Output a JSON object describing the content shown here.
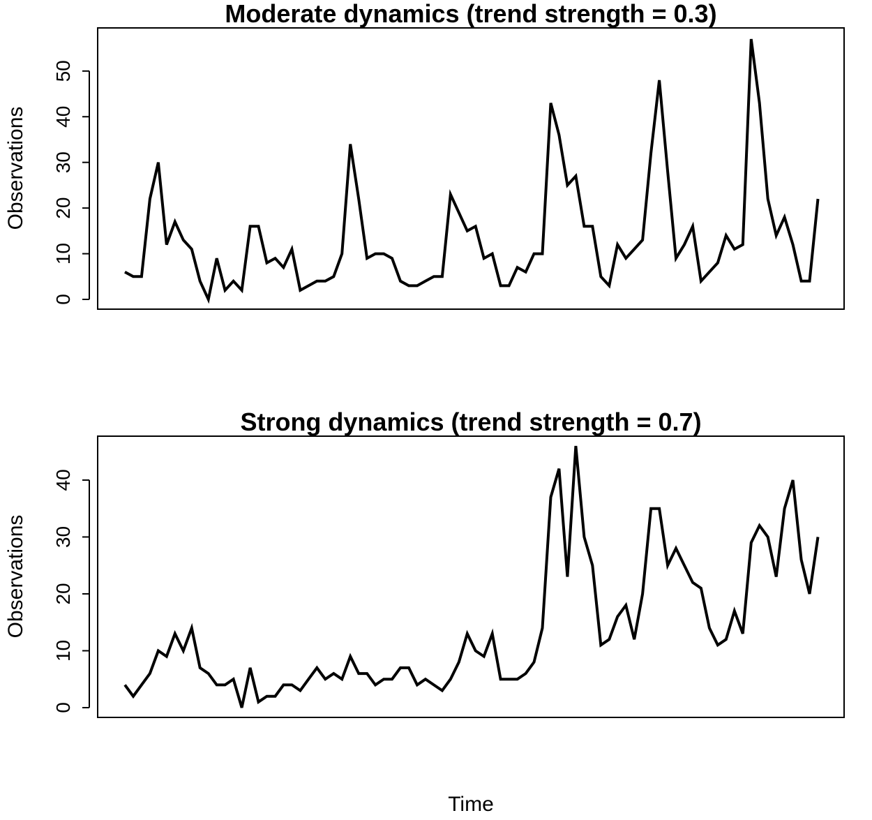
{
  "figure": {
    "xlabel": "Time"
  },
  "chart_data": [
    {
      "type": "line",
      "title": "Moderate dynamics (trend strength = 0.3)",
      "ylabel": "Observations",
      "xlabel": "",
      "ylim": [
        0,
        57
      ],
      "yticks": [
        "0",
        "10",
        "20",
        "30",
        "40",
        "50"
      ],
      "grid": false,
      "line_color": "#000000",
      "x": [
        1,
        2,
        3,
        4,
        5,
        6,
        7,
        8,
        9,
        10,
        11,
        12,
        13,
        14,
        15,
        16,
        17,
        18,
        19,
        20,
        21,
        22,
        23,
        24,
        25,
        26,
        27,
        28,
        29,
        30,
        31,
        32,
        33,
        34,
        35,
        36,
        37,
        38,
        39,
        40,
        41,
        42,
        43,
        44,
        45,
        46,
        47,
        48,
        49,
        50,
        51,
        52,
        53,
        54,
        55,
        56,
        57,
        58,
        59,
        60,
        61,
        62,
        63,
        64,
        65,
        66,
        67,
        68,
        69,
        70,
        71,
        72,
        73,
        74,
        75,
        76,
        77,
        78,
        79,
        80,
        81,
        82,
        83,
        84,
        85,
        86,
        87,
        88,
        89,
        90
      ],
      "values": [
        6,
        5,
        5,
        22,
        30,
        12,
        17,
        13,
        11,
        4,
        0,
        9,
        2,
        4,
        2,
        16,
        16,
        8,
        9,
        7,
        11,
        2,
        3,
        4,
        4,
        5,
        10,
        34,
        22,
        9,
        10,
        10,
        9,
        4,
        3,
        3,
        4,
        5,
        5,
        23,
        19,
        15,
        16,
        9,
        10,
        3,
        3,
        7,
        6,
        10,
        10,
        43,
        36,
        25,
        27,
        16,
        16,
        5,
        3,
        12,
        9,
        11,
        13,
        32,
        48,
        28,
        9,
        12,
        16,
        4,
        6,
        8,
        14,
        11,
        12,
        57,
        43,
        22,
        14,
        18,
        12,
        4,
        4,
        22,
        null,
        null,
        null,
        null,
        null,
        null
      ]
    },
    {
      "type": "line",
      "title": "Strong dynamics (trend strength = 0.7)",
      "ylabel": "Observations",
      "xlabel": "",
      "ylim": [
        0,
        46
      ],
      "yticks": [
        "0",
        "10",
        "20",
        "30",
        "40"
      ],
      "grid": false,
      "line_color": "#000000",
      "x": [
        1,
        2,
        3,
        4,
        5,
        6,
        7,
        8,
        9,
        10,
        11,
        12,
        13,
        14,
        15,
        16,
        17,
        18,
        19,
        20,
        21,
        22,
        23,
        24,
        25,
        26,
        27,
        28,
        29,
        30,
        31,
        32,
        33,
        34,
        35,
        36,
        37,
        38,
        39,
        40,
        41,
        42,
        43,
        44,
        45,
        46,
        47,
        48,
        49,
        50,
        51,
        52,
        53,
        54,
        55,
        56,
        57,
        58,
        59,
        60,
        61,
        62,
        63,
        64,
        65,
        66,
        67,
        68,
        69,
        70,
        71,
        72,
        73,
        74,
        75,
        76,
        77,
        78,
        79,
        80,
        81,
        82,
        83,
        84,
        85,
        86,
        87,
        88,
        89,
        90
      ],
      "values": [
        4,
        2,
        4,
        6,
        10,
        9,
        13,
        10,
        14,
        7,
        6,
        4,
        4,
        5,
        0,
        7,
        1,
        2,
        2,
        4,
        4,
        3,
        5,
        7,
        5,
        6,
        5,
        9,
        6,
        6,
        4,
        5,
        5,
        7,
        7,
        4,
        5,
        4,
        3,
        5,
        8,
        13,
        10,
        9,
        13,
        5,
        5,
        5,
        6,
        8,
        14,
        37,
        42,
        23,
        46,
        30,
        25,
        11,
        12,
        16,
        18,
        12,
        20,
        35,
        35,
        25,
        28,
        25,
        22,
        21,
        14,
        11,
        12,
        17,
        13,
        29,
        32,
        30,
        23,
        35,
        40,
        26,
        20,
        30,
        null,
        null,
        null,
        null,
        null,
        null
      ]
    }
  ]
}
